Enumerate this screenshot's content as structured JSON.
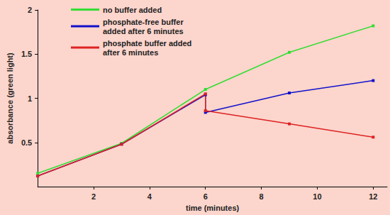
{
  "chart_data": {
    "type": "line",
    "x_label": "time (minutes)",
    "y_label": "absorbance (green light)",
    "xlim": [
      0,
      12.5
    ],
    "xticks": [
      2,
      4,
      6,
      8,
      10,
      12
    ],
    "ylim": [
      0,
      2
    ],
    "yticks": [
      0.5,
      1,
      1.5,
      2
    ],
    "grid": false,
    "legend": "upper left",
    "marker": "square",
    "series": [
      {
        "name": "no buffer added",
        "color": "#33dd33",
        "x": [
          0,
          3,
          6,
          9,
          12
        ],
        "values": [
          0.15,
          0.49,
          1.1,
          1.52,
          1.82
        ]
      },
      {
        "name": "phosphate-free buffer added after 6 minutes",
        "color": "#1111cc",
        "x": [
          0,
          3,
          6,
          6,
          9,
          12
        ],
        "values": [
          0.12,
          0.48,
          1.04,
          0.84,
          1.06,
          1.2
        ]
      },
      {
        "name": "phosphate buffer added after 6 minutes",
        "color": "#dd2222",
        "x": [
          0,
          3,
          6,
          6,
          9,
          12
        ],
        "values": [
          0.12,
          0.48,
          1.05,
          0.86,
          0.71,
          0.56
        ]
      }
    ]
  }
}
